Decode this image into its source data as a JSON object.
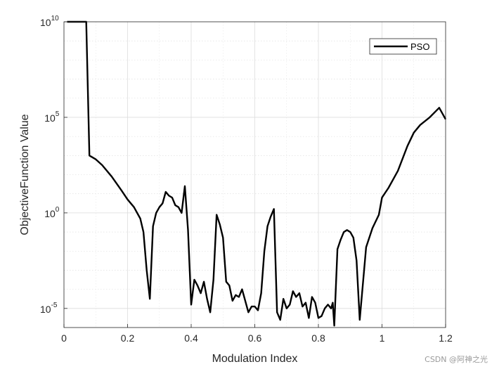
{
  "chart_data": {
    "type": "line",
    "title": "",
    "xlabel": "Modulation Index",
    "ylabel": "ObjectiveFunction Value",
    "xlim": [
      0,
      1.2
    ],
    "ylim_log10": [
      -6,
      10
    ],
    "y_scale": "log",
    "grid": true,
    "minor_grid": true,
    "legend": {
      "position": "top-right",
      "entries": [
        "PSO"
      ]
    },
    "x_ticks": [
      {
        "value": 0,
        "label": "0"
      },
      {
        "value": 0.2,
        "label": "0.2"
      },
      {
        "value": 0.4,
        "label": "0.4"
      },
      {
        "value": 0.6,
        "label": "0.6"
      },
      {
        "value": 0.8,
        "label": "0.8"
      },
      {
        "value": 1,
        "label": "1"
      },
      {
        "value": 1.2,
        "label": "1.2"
      }
    ],
    "y_ticks": [
      {
        "exponent": 10,
        "base": "10",
        "sup": "10"
      },
      {
        "exponent": 5,
        "base": "10",
        "sup": "5"
      },
      {
        "exponent": 0,
        "base": "10",
        "sup": "0"
      },
      {
        "exponent": -5,
        "base": "10",
        "sup": "-5"
      }
    ],
    "series": [
      {
        "name": "PSO",
        "color": "#000000",
        "x": [
          0.01,
          0.03,
          0.05,
          0.07,
          0.08,
          0.1,
          0.12,
          0.15,
          0.18,
          0.2,
          0.22,
          0.24,
          0.25,
          0.26,
          0.27,
          0.28,
          0.29,
          0.3,
          0.31,
          0.32,
          0.33,
          0.34,
          0.35,
          0.36,
          0.37,
          0.38,
          0.39,
          0.4,
          0.41,
          0.42,
          0.43,
          0.44,
          0.45,
          0.46,
          0.47,
          0.48,
          0.49,
          0.5,
          0.51,
          0.52,
          0.53,
          0.54,
          0.55,
          0.56,
          0.57,
          0.58,
          0.59,
          0.6,
          0.61,
          0.62,
          0.63,
          0.64,
          0.65,
          0.66,
          0.67,
          0.68,
          0.69,
          0.7,
          0.71,
          0.72,
          0.73,
          0.74,
          0.75,
          0.76,
          0.77,
          0.78,
          0.79,
          0.8,
          0.81,
          0.82,
          0.83,
          0.84,
          0.845,
          0.85,
          0.86,
          0.87,
          0.88,
          0.89,
          0.9,
          0.91,
          0.92,
          0.93,
          0.95,
          0.97,
          0.99,
          1.0,
          1.02,
          1.05,
          1.08,
          1.1,
          1.12,
          1.15,
          1.18,
          1.2
        ],
        "y": [
          10,
          10,
          10,
          10,
          3,
          2.8,
          2.5,
          1.9,
          1.2,
          0.7,
          0.3,
          -0.3,
          -1,
          -3,
          -4.5,
          -0.7,
          0,
          0.3,
          0.5,
          1.1,
          0.9,
          0.8,
          0.4,
          0.3,
          0,
          1.4,
          -0.9,
          -4.8,
          -3.5,
          -3.8,
          -4.2,
          -3.6,
          -4.5,
          -5.2,
          -3.5,
          -0.1,
          -0.6,
          -1.3,
          -3.6,
          -3.8,
          -4.6,
          -4.3,
          -4.4,
          -4,
          -4.6,
          -5.2,
          -4.9,
          -4.9,
          -5.1,
          -4.2,
          -2,
          -0.7,
          -0.2,
          0.2,
          -5.2,
          -5.6,
          -4.5,
          -5.0,
          -4.8,
          -4.1,
          -4.4,
          -4.2,
          -4.9,
          -4.7,
          -5.5,
          -4.4,
          -4.7,
          -5.5,
          -5.4,
          -5.0,
          -4.8,
          -5,
          -4.7,
          -5.9,
          -1.9,
          -1.4,
          -1,
          -0.9,
          -1,
          -1.3,
          -2.5,
          -5.6,
          -1.8,
          -0.8,
          -0.1,
          0.8,
          1.3,
          2.2,
          3.5,
          4.2,
          4.6,
          5.0,
          5.5,
          4.9
        ]
      }
    ]
  },
  "watermark": "CSDN @阿神之光"
}
